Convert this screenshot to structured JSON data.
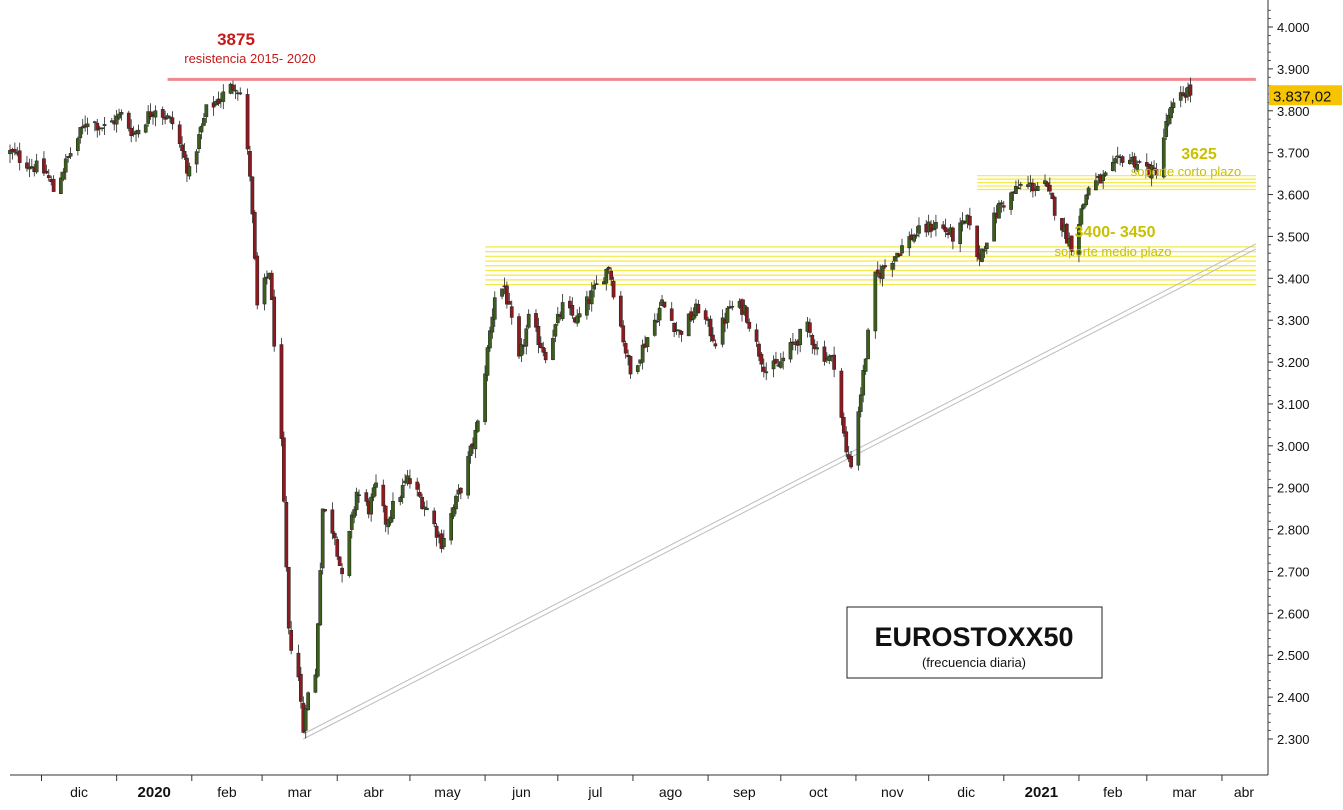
{
  "chart_data": {
    "type": "candlestick",
    "instrument": "EUROSTOXX50",
    "frequency_note": "(frecuencia diaria)",
    "ylim": [
      2260,
      4040
    ],
    "y_ticks": [
      2300,
      2400,
      2500,
      2600,
      2700,
      2800,
      2900,
      3000,
      3100,
      3200,
      3300,
      3400,
      3500,
      3600,
      3700,
      3800,
      3900,
      4000
    ],
    "y_tick_labels": [
      "2.300",
      "2.400",
      "2.500",
      "2.600",
      "2.700",
      "2.800",
      "2.900",
      "3.000",
      "3.100",
      "3.200",
      "3.300",
      "3.400",
      "3.500",
      "3.600",
      "3.700",
      "3.800",
      "3.900",
      "4.000"
    ],
    "x_labels": [
      {
        "text": "dic",
        "date": "2019-12-01",
        "bold": false
      },
      {
        "text": "2020",
        "date": "2020-01-01",
        "bold": true
      },
      {
        "text": "feb",
        "date": "2020-02-01",
        "bold": false
      },
      {
        "text": "mar",
        "date": "2020-03-01",
        "bold": false
      },
      {
        "text": "abr",
        "date": "2020-04-01",
        "bold": false
      },
      {
        "text": "may",
        "date": "2020-05-01",
        "bold": false
      },
      {
        "text": "jun",
        "date": "2020-06-01",
        "bold": false
      },
      {
        "text": "jul",
        "date": "2020-07-01",
        "bold": false
      },
      {
        "text": "ago",
        "date": "2020-08-01",
        "bold": false
      },
      {
        "text": "sep",
        "date": "2020-09-01",
        "bold": false
      },
      {
        "text": "oct",
        "date": "2020-10-01",
        "bold": false
      },
      {
        "text": "nov",
        "date": "2020-11-01",
        "bold": false
      },
      {
        "text": "dic",
        "date": "2020-12-01",
        "bold": false
      },
      {
        "text": "2021",
        "date": "2021-01-01",
        "bold": true
      },
      {
        "text": "feb",
        "date": "2021-02-01",
        "bold": false
      },
      {
        "text": "mar",
        "date": "2021-03-01",
        "bold": false
      },
      {
        "text": "abr",
        "date": "2021-04-01",
        "bold": false
      }
    ],
    "x_range": [
      "2019-11-18",
      "2021-04-20"
    ],
    "last_price": 3837.02,
    "last_price_label": "3.837,02",
    "resistance": {
      "level": 3875,
      "label": "3875",
      "note": "resistencia 2015- 2020",
      "from": "2020-01-22",
      "to": "2021-04-15",
      "color": "#ee8a8f"
    },
    "support_bands": [
      {
        "label": "3625",
        "note": "soporte corto plazo",
        "low": 3612,
        "high": 3645,
        "from": "2020-12-21",
        "to": "2021-04-15",
        "color": "#f3ea4a"
      },
      {
        "label": "3400- 3450",
        "note": "soporte medio plazo",
        "low": 3385,
        "high": 3475,
        "from": "2020-06-01",
        "to": "2021-04-15",
        "color": "#f3ea4a"
      }
    ],
    "trendline": {
      "from_date": "2020-03-18",
      "from_value": 2300,
      "to_date": "2021-04-15",
      "to_value": 3470,
      "color": "#bdbdbd"
    },
    "up_color": "#3b5e1b",
    "down_color": "#8c1a1f",
    "anchors": [
      [
        "2019-11-18",
        3700
      ],
      [
        "2019-12-03",
        3650
      ],
      [
        "2019-12-06",
        3610
      ],
      [
        "2019-12-13",
        3700
      ],
      [
        "2019-12-20",
        3780
      ],
      [
        "2019-12-27",
        3760
      ],
      [
        "2020-01-03",
        3790
      ],
      [
        "2020-01-08",
        3745
      ],
      [
        "2020-01-17",
        3810
      ],
      [
        "2020-01-24",
        3770
      ],
      [
        "2020-01-31",
        3650
      ],
      [
        "2020-02-07",
        3800
      ],
      [
        "2020-02-19",
        3865
      ],
      [
        "2020-02-21",
        3840
      ],
      [
        "2020-02-25",
        3650
      ],
      [
        "2020-02-28",
        3330
      ],
      [
        "2020-03-04",
        3420
      ],
      [
        "2020-03-09",
        3000
      ],
      [
        "2020-03-12",
        2550
      ],
      [
        "2020-03-16",
        2450
      ],
      [
        "2020-03-18",
        2320
      ],
      [
        "2020-03-19",
        2390
      ],
      [
        "2020-03-23",
        2450
      ],
      [
        "2020-03-26",
        2850
      ],
      [
        "2020-03-31",
        2790
      ],
      [
        "2020-04-03",
        2680
      ],
      [
        "2020-04-09",
        2890
      ],
      [
        "2020-04-14",
        2850
      ],
      [
        "2020-04-17",
        2900
      ],
      [
        "2020-04-21",
        2820
      ],
      [
        "2020-04-30",
        2920
      ],
      [
        "2020-05-08",
        2850
      ],
      [
        "2020-05-14",
        2770
      ],
      [
        "2020-05-22",
        2900
      ],
      [
        "2020-05-29",
        3050
      ],
      [
        "2020-06-05",
        3360
      ],
      [
        "2020-06-09",
        3380
      ],
      [
        "2020-06-15",
        3200
      ],
      [
        "2020-06-19",
        3300
      ],
      [
        "2020-06-26",
        3220
      ],
      [
        "2020-07-03",
        3330
      ],
      [
        "2020-07-09",
        3300
      ],
      [
        "2020-07-17",
        3380
      ],
      [
        "2020-07-22",
        3430
      ],
      [
        "2020-07-31",
        3170
      ],
      [
        "2020-08-07",
        3260
      ],
      [
        "2020-08-13",
        3340
      ],
      [
        "2020-08-20",
        3270
      ],
      [
        "2020-08-28",
        3330
      ],
      [
        "2020-09-04",
        3250
      ],
      [
        "2020-09-10",
        3330
      ],
      [
        "2020-09-16",
        3330
      ],
      [
        "2020-09-21",
        3240
      ],
      [
        "2020-09-25",
        3180
      ],
      [
        "2020-09-30",
        3190
      ],
      [
        "2020-10-07",
        3250
      ],
      [
        "2020-10-12",
        3280
      ],
      [
        "2020-10-16",
        3230
      ],
      [
        "2020-10-23",
        3200
      ],
      [
        "2020-10-28",
        2980
      ],
      [
        "2020-10-30",
        2960
      ],
      [
        "2020-11-04",
        3170
      ],
      [
        "2020-11-09",
        3400
      ],
      [
        "2020-11-16",
        3450
      ],
      [
        "2020-11-24",
        3500
      ],
      [
        "2020-12-04",
        3530
      ],
      [
        "2020-12-11",
        3500
      ],
      [
        "2020-12-18",
        3540
      ],
      [
        "2020-12-21",
        3440
      ],
      [
        "2020-12-30",
        3570
      ],
      [
        "2021-01-08",
        3620
      ],
      [
        "2021-01-18",
        3620
      ],
      [
        "2021-01-27",
        3500
      ],
      [
        "2021-01-29",
        3480
      ],
      [
        "2021-02-05",
        3620
      ],
      [
        "2021-02-12",
        3640
      ],
      [
        "2021-02-19",
        3690
      ],
      [
        "2021-02-24",
        3680
      ],
      [
        "2021-03-04",
        3650
      ],
      [
        "2021-03-05",
        3660
      ],
      [
        "2021-03-10",
        3790
      ],
      [
        "2021-03-16",
        3840
      ],
      [
        "2021-03-18",
        3850
      ],
      [
        "2021-03-19",
        3837
      ]
    ]
  }
}
